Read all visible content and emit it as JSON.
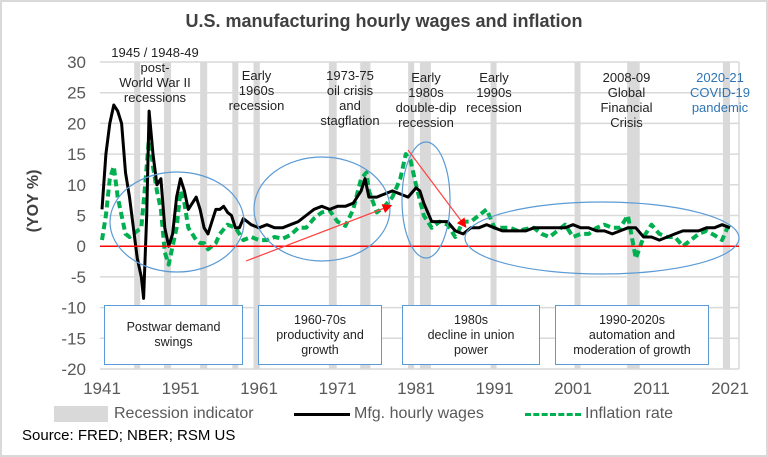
{
  "chart_data": {
    "type": "line",
    "title": "U.S. manufacturing hourly wages and inflation",
    "ylabel": "(YOY %)",
    "xlabel": "",
    "xlim": [
      1941,
      2022.2
    ],
    "ylim": [
      -20,
      30
    ],
    "x_ticks": [
      1941,
      1951,
      1961,
      1971,
      1981,
      1991,
      2001,
      2011,
      2021
    ],
    "y_ticks": [
      -20,
      -15,
      -10,
      -5,
      0,
      5,
      10,
      15,
      20,
      25,
      30
    ],
    "grid": "horizontal",
    "legend_position": "bottom",
    "zero_line_color": "#ff0000",
    "recessions": [
      [
        1945.1,
        1945.8
      ],
      [
        1948.9,
        1949.8
      ],
      [
        1953.5,
        1954.4
      ],
      [
        1957.6,
        1958.3
      ],
      [
        1960.3,
        1961.1
      ],
      [
        1969.9,
        1970.9
      ],
      [
        1973.9,
        1975.2
      ],
      [
        1980.0,
        1980.6
      ],
      [
        1981.5,
        1982.9
      ],
      [
        1990.5,
        1991.2
      ],
      [
        2001.2,
        2001.9
      ],
      [
        2007.9,
        2009.5
      ],
      [
        2020.1,
        2021.0
      ]
    ],
    "series": [
      {
        "name": "Mfg. hourly wages",
        "color": "#000000",
        "style": "solid",
        "x": [
          1941,
          1941.5,
          1942,
          1942.5,
          1943,
          1943.5,
          1944,
          1944.5,
          1945,
          1945.5,
          1946,
          1946.3,
          1946.7,
          1947,
          1947.5,
          1948,
          1948.5,
          1949,
          1949.5,
          1950,
          1950.5,
          1951,
          1951.5,
          1952,
          1952.5,
          1953,
          1953.5,
          1954,
          1954.5,
          1955,
          1955.5,
          1956,
          1956.5,
          1957,
          1957.5,
          1958,
          1958.5,
          1959,
          1959.5,
          1960,
          1961,
          1962,
          1963,
          1964,
          1965,
          1966,
          1967,
          1968,
          1969,
          1970,
          1971,
          1972,
          1973,
          1974,
          1974.5,
          1975,
          1976,
          1977,
          1978,
          1979,
          1980,
          1981,
          1981.5,
          1982,
          1983,
          1984,
          1985,
          1986,
          1987,
          1988,
          1989,
          1990,
          1991,
          1992,
          1993,
          1994,
          1995,
          1996,
          1997,
          1998,
          1999,
          2000,
          2001,
          2002,
          2003,
          2004,
          2005,
          2006,
          2007,
          2008,
          2009,
          2010,
          2011,
          2012,
          2013,
          2014,
          2015,
          2016,
          2017,
          2018,
          2019,
          2020,
          2021
        ],
        "y": [
          6,
          15,
          20,
          23,
          22,
          20,
          12,
          8,
          3,
          -2,
          -5,
          -8.5,
          5,
          22,
          15,
          10,
          11,
          3,
          0,
          2,
          8,
          11,
          9,
          6,
          7,
          8,
          6,
          3,
          2,
          4,
          6,
          6,
          6.5,
          5.5,
          5,
          3,
          3,
          4.5,
          4,
          3.5,
          3,
          3.5,
          3,
          3,
          3.5,
          4,
          5,
          6,
          6.5,
          6,
          6.5,
          6.5,
          7,
          9,
          11,
          8,
          8,
          8.5,
          9,
          8.5,
          8,
          9.5,
          9,
          7,
          4,
          4,
          4,
          2.5,
          2,
          3,
          3,
          3.5,
          3,
          2.5,
          2.5,
          2.5,
          2.5,
          3,
          3,
          3,
          3,
          3,
          3.5,
          3,
          3,
          2.5,
          2.5,
          2,
          2.5,
          3,
          3,
          1.5,
          1.5,
          1,
          1.5,
          2,
          2.5,
          2.5,
          2.5,
          3,
          3,
          3.5,
          3
        ]
      },
      {
        "name": "Inflation rate",
        "color": "#00b050",
        "style": "dashed",
        "x": [
          1941,
          1941.5,
          1942,
          1942.5,
          1943,
          1943.5,
          1944,
          1944.5,
          1945,
          1945.5,
          1946,
          1946.5,
          1947,
          1947.5,
          1948,
          1948.5,
          1949,
          1949.5,
          1950,
          1950.5,
          1951,
          1951.5,
          1952,
          1952.5,
          1953,
          1953.5,
          1954,
          1954.5,
          1955,
          1955.5,
          1956,
          1957,
          1958,
          1958.5,
          1959,
          1960,
          1961,
          1962,
          1963,
          1964,
          1965,
          1966,
          1967,
          1968,
          1969,
          1970,
          1971,
          1972,
          1973,
          1974,
          1974.7,
          1975,
          1976,
          1977,
          1978,
          1979,
          1979.7,
          1980.3,
          1981,
          1982,
          1983,
          1984,
          1985,
          1986,
          1987,
          1988,
          1989,
          1990,
          1991,
          1992,
          1993,
          1994,
          1995,
          1996,
          1997,
          1998,
          1999,
          2000,
          2001,
          2002,
          2003,
          2004,
          2005,
          2006,
          2007,
          2008,
          2009,
          2010,
          2011,
          2012,
          2013,
          2014,
          2015,
          2016,
          2017,
          2018,
          2019,
          2020,
          2021
        ],
        "y": [
          1,
          5,
          11,
          13,
          8,
          5,
          2,
          1.5,
          2,
          2.5,
          3,
          10,
          18,
          13,
          9,
          6,
          -1,
          -3,
          0,
          3,
          9,
          7,
          3,
          2,
          1,
          0.5,
          0.5,
          -0.5,
          0,
          0.5,
          2,
          3.5,
          3,
          2,
          1,
          1.5,
          1,
          1,
          1.5,
          1.2,
          1.8,
          3,
          3,
          4.5,
          5.5,
          5.8,
          4,
          3.3,
          6,
          11,
          12,
          9,
          5.5,
          6.5,
          8,
          11,
          15,
          14,
          10,
          5,
          3,
          4,
          3.5,
          1.5,
          4,
          4,
          5,
          6,
          3,
          3,
          3,
          2.5,
          2.8,
          3,
          2,
          1.5,
          2.5,
          3.5,
          1.5,
          2,
          2,
          3,
          3.5,
          3,
          3,
          5,
          -2,
          1.5,
          3.5,
          2,
          1.5,
          1.5,
          0,
          1,
          2,
          2.5,
          1.8,
          1,
          4
        ]
      }
    ],
    "annotations": {
      "postwar": "1945 / 1948-49\npost-\nWorld War II\nrecessions",
      "early60s": "Early\n1960s\nrecession",
      "oil": "1973-75\noil crisis\nand\nstagflation",
      "early80s": "Early\n1980s\ndouble-dip\nrecession",
      "early90s": "Early\n1990s\nrecession",
      "gfc": "2008-09\nGlobal\nFinancial\nCrisis",
      "covid": "2020-21\nCOVID-19\npandemic",
      "covid_color": "#2e75b6"
    },
    "boxes": [
      "Postwar demand\nswings",
      "1960-70s\nproductivity and\ngrowth",
      "1980s\ndecline in union\npower",
      "1990-2020s\nautomation and\nmoderation of growth"
    ],
    "legend": {
      "recession": "Recession indicator",
      "wages": "Mfg. hourly wages",
      "inflation": "Inflation rate"
    },
    "source": "Source: FRED; NBER; RSM US"
  }
}
